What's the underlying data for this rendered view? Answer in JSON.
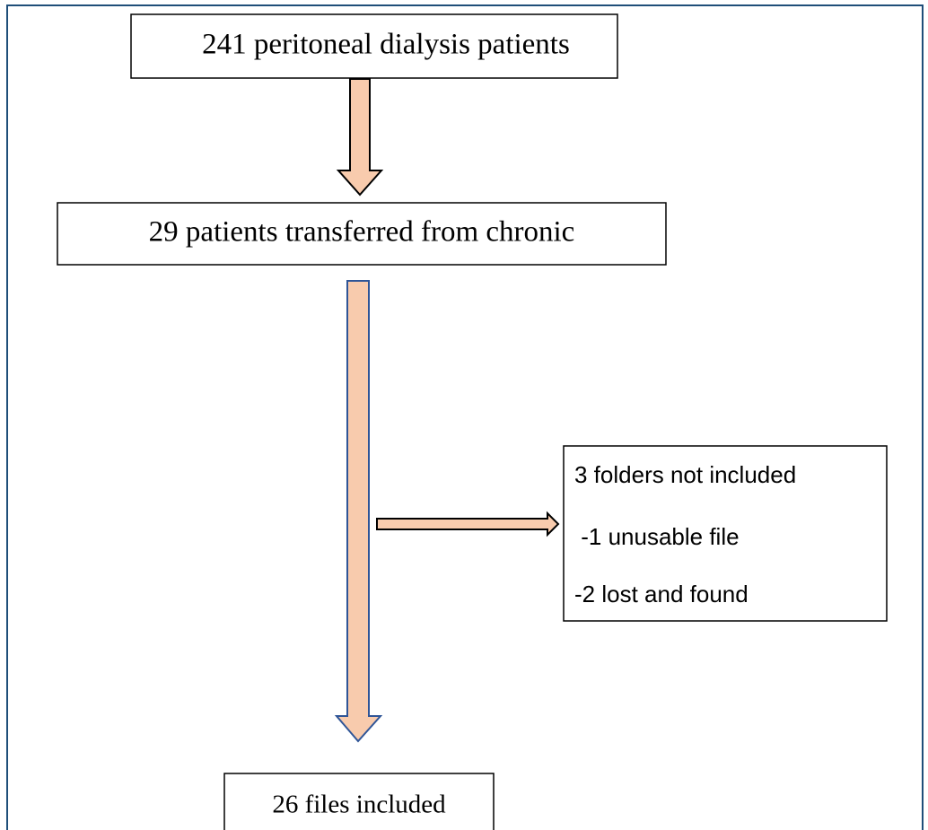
{
  "nodes": [
    {
      "label": "241 peritoneal dialysis patients"
    },
    {
      "label": "29 patients transferred from chronic"
    },
    {
      "lines": [
        "3 folders not included",
        " -1 unusable file",
        "-2 lost and found"
      ]
    },
    {
      "label": "26 files included"
    }
  ]
}
